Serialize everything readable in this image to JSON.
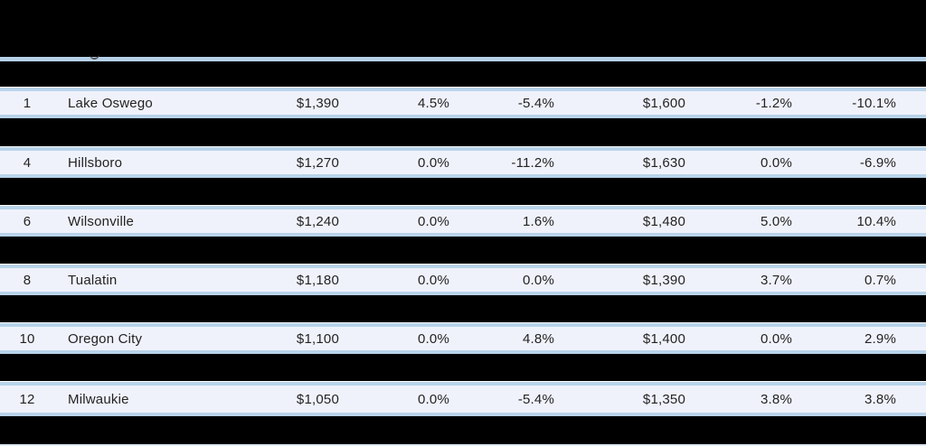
{
  "colors": {
    "page_bg": "#000000",
    "row_bg": "#f0f2fb",
    "row_border": "#b8d3e9",
    "divider": "#b5d1e9",
    "text": "#232323"
  },
  "rows": [
    {
      "rank": "1",
      "city": "Lake Oswego",
      "rent_a": "$1,390",
      "pct_a1": "4.5%",
      "pct_a2": "-5.4%",
      "rent_b": "$1,600",
      "pct_b1": "-1.2%",
      "pct_b2": "-10.1%"
    },
    {
      "rank": "4",
      "city": "Hillsboro",
      "rent_a": "$1,270",
      "pct_a1": "0.0%",
      "pct_a2": "-11.2%",
      "rent_b": "$1,630",
      "pct_b1": "0.0%",
      "pct_b2": "-6.9%"
    },
    {
      "rank": "6",
      "city": "Wilsonville",
      "rent_a": "$1,240",
      "pct_a1": "0.0%",
      "pct_a2": "1.6%",
      "rent_b": "$1,480",
      "pct_b1": "5.0%",
      "pct_b2": "10.4%"
    },
    {
      "rank": "8",
      "city": "Tualatin",
      "rent_a": "$1,180",
      "pct_a1": "0.0%",
      "pct_a2": "0.0%",
      "rent_b": "$1,390",
      "pct_b1": "3.7%",
      "pct_b2": "0.7%"
    },
    {
      "rank": "10",
      "city": "Oregon City",
      "rent_a": "$1,100",
      "pct_a1": "0.0%",
      "pct_a2": "4.8%",
      "rent_b": "$1,400",
      "pct_b1": "0.0%",
      "pct_b2": "2.9%"
    },
    {
      "rank": "12",
      "city": "Milwaukie",
      "rent_a": "$1,050",
      "pct_a1": "0.0%",
      "pct_a2": "-5.4%",
      "rent_b": "$1,350",
      "pct_b1": "3.8%",
      "pct_b2": "3.8%"
    }
  ],
  "chart_data": {
    "type": "table",
    "header_visible": false,
    "alternating_rows_redacted": true,
    "columns": [
      "rank",
      "city",
      "rent_a",
      "pct_a1",
      "pct_a2",
      "rent_b",
      "pct_b1",
      "pct_b2"
    ],
    "rows": [
      [
        1,
        "Lake Oswego",
        1390,
        4.5,
        -5.4,
        1600,
        -1.2,
        -10.1
      ],
      [
        4,
        "Hillsboro",
        1270,
        0.0,
        -11.2,
        1630,
        0.0,
        -6.9
      ],
      [
        6,
        "Wilsonville",
        1240,
        0.0,
        1.6,
        1480,
        5.0,
        10.4
      ],
      [
        8,
        "Tualatin",
        1180,
        0.0,
        0.0,
        1390,
        3.7,
        0.7
      ],
      [
        10,
        "Oregon City",
        1100,
        0.0,
        4.8,
        1400,
        0.0,
        2.9
      ],
      [
        12,
        "Milwaukie",
        1050,
        0.0,
        -5.4,
        1350,
        3.8,
        3.8
      ]
    ]
  }
}
